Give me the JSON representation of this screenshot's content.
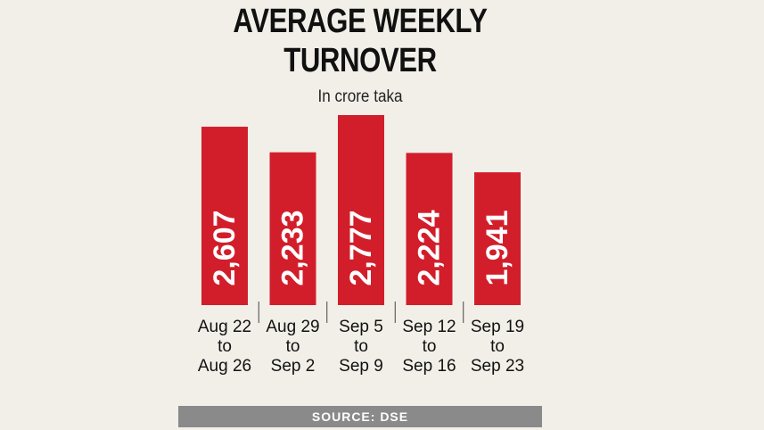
{
  "title_line1": "AVERAGE WEEKLY",
  "title_line2": "TURNOVER",
  "subtitle": "In crore taka",
  "source": "SOURCE: DSE",
  "colors": {
    "bar": "#d21e2b",
    "value_label": "#ffffff",
    "background": "#f1efe8",
    "source_bg": "#8a8a8a"
  },
  "chart_data": {
    "type": "bar",
    "title": "AVERAGE WEEKLY TURNOVER",
    "subtitle": "In crore taka",
    "categories": [
      [
        "Aug 22",
        "to",
        "Aug 26"
      ],
      [
        "Aug 29",
        "to",
        "Sep 2"
      ],
      [
        "Sep 5",
        "to",
        "Sep 9"
      ],
      [
        "Sep 12",
        "to",
        "Sep 16"
      ],
      [
        "Sep 19",
        "to",
        "Sep 23"
      ]
    ],
    "values": [
      2607,
      2233,
      2777,
      2224,
      1941
    ],
    "value_labels": [
      "2,607",
      "2,233",
      "2,777",
      "2,224",
      "1,941"
    ],
    "ylim": [
      0,
      2777
    ],
    "grid": false,
    "legend": "none"
  }
}
